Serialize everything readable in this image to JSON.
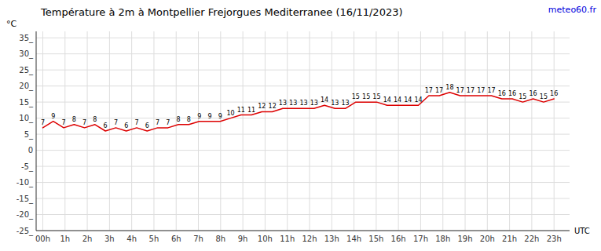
{
  "chart_data": {
    "type": "line",
    "title": "Température à 2m à Montpellier Frejorgues Mediterranee (16/11/2023)",
    "y_label": "°C",
    "x_label": "UTC",
    "annotations": [
      "meteo60.fr"
    ],
    "x": [
      0,
      0.469388,
      0.938776,
      1.408163,
      1.877551,
      2.346939,
      2.816327,
      3.285714,
      3.755102,
      4.22449,
      4.693878,
      5.163265,
      5.632653,
      6.102041,
      6.571429,
      7.040816,
      7.510204,
      7.979592,
      8.44898,
      8.918367,
      9.387755,
      9.857143,
      10.326531,
      10.795918,
      11.265306,
      11.734694,
      12.204082,
      12.673469,
      13.142857,
      13.612245,
      14.081633,
      14.55102,
      15.020408,
      15.489796,
      15.959184,
      16.428571,
      16.897959,
      17.367347,
      17.836735,
      18.306122,
      18.77551,
      19.244898,
      19.714286,
      20.183673,
      20.653061,
      21.122449,
      21.591837,
      22.061224,
      22.530612,
      23
    ],
    "values": [
      7,
      9,
      7,
      8,
      7,
      8,
      6,
      7,
      6,
      7,
      6,
      7,
      7,
      8,
      8,
      9,
      9,
      9,
      10,
      11,
      11,
      12,
      12,
      13,
      13,
      13,
      13,
      14,
      13,
      13,
      15,
      15,
      15,
      14,
      14,
      14,
      14,
      17,
      17,
      18,
      17,
      17,
      17,
      17,
      16,
      16,
      15,
      16,
      15,
      16
    ],
    "color": "#dd0000",
    "data_labels": true,
    "grid": true,
    "xlim": [
      -0.3,
      23.7
    ],
    "xticks": [
      {
        "value": 0,
        "label": "00h"
      },
      {
        "value": 1,
        "label": "1h"
      },
      {
        "value": 2,
        "label": "2h"
      },
      {
        "value": 3,
        "label": "3h"
      },
      {
        "value": 4,
        "label": "4h"
      },
      {
        "value": 5,
        "label": "5h"
      },
      {
        "value": 6,
        "label": "6h"
      },
      {
        "value": 7,
        "label": "7h"
      },
      {
        "value": 8,
        "label": "8h"
      },
      {
        "value": 9,
        "label": "9h"
      },
      {
        "value": 10,
        "label": "10h"
      },
      {
        "value": 11,
        "label": "11h"
      },
      {
        "value": 12,
        "label": "12h"
      },
      {
        "value": 13,
        "label": "13h"
      },
      {
        "value": 14,
        "label": "14h"
      },
      {
        "value": 15,
        "label": "15h"
      },
      {
        "value": 16,
        "label": "16h"
      },
      {
        "value": 17,
        "label": "17h"
      },
      {
        "value": 18,
        "label": "18h"
      },
      {
        "value": 19,
        "label": "19h"
      },
      {
        "value": 20,
        "label": "20h"
      },
      {
        "value": 21,
        "label": "21h"
      },
      {
        "value": 22,
        "label": "22h"
      },
      {
        "value": 23,
        "label": "23h"
      }
    ],
    "ylim": [
      -25,
      37
    ],
    "yticks": [
      {
        "value": -25,
        "label": "-25_"
      },
      {
        "value": -20,
        "label": "-20_"
      },
      {
        "value": -15,
        "label": "-15_"
      },
      {
        "value": -10,
        "label": "-10_"
      },
      {
        "value": -5,
        "label": "-5_"
      },
      0,
      {
        "value": 5,
        "label": "5_"
      },
      {
        "value": 10,
        "label": "10_"
      },
      {
        "value": 15,
        "label": "15_"
      },
      {
        "value": 20,
        "label": "20_"
      },
      {
        "value": 25,
        "label": "25_"
      },
      {
        "value": 30,
        "label": "30_"
      },
      {
        "value": 35,
        "label": "35_"
      }
    ]
  }
}
